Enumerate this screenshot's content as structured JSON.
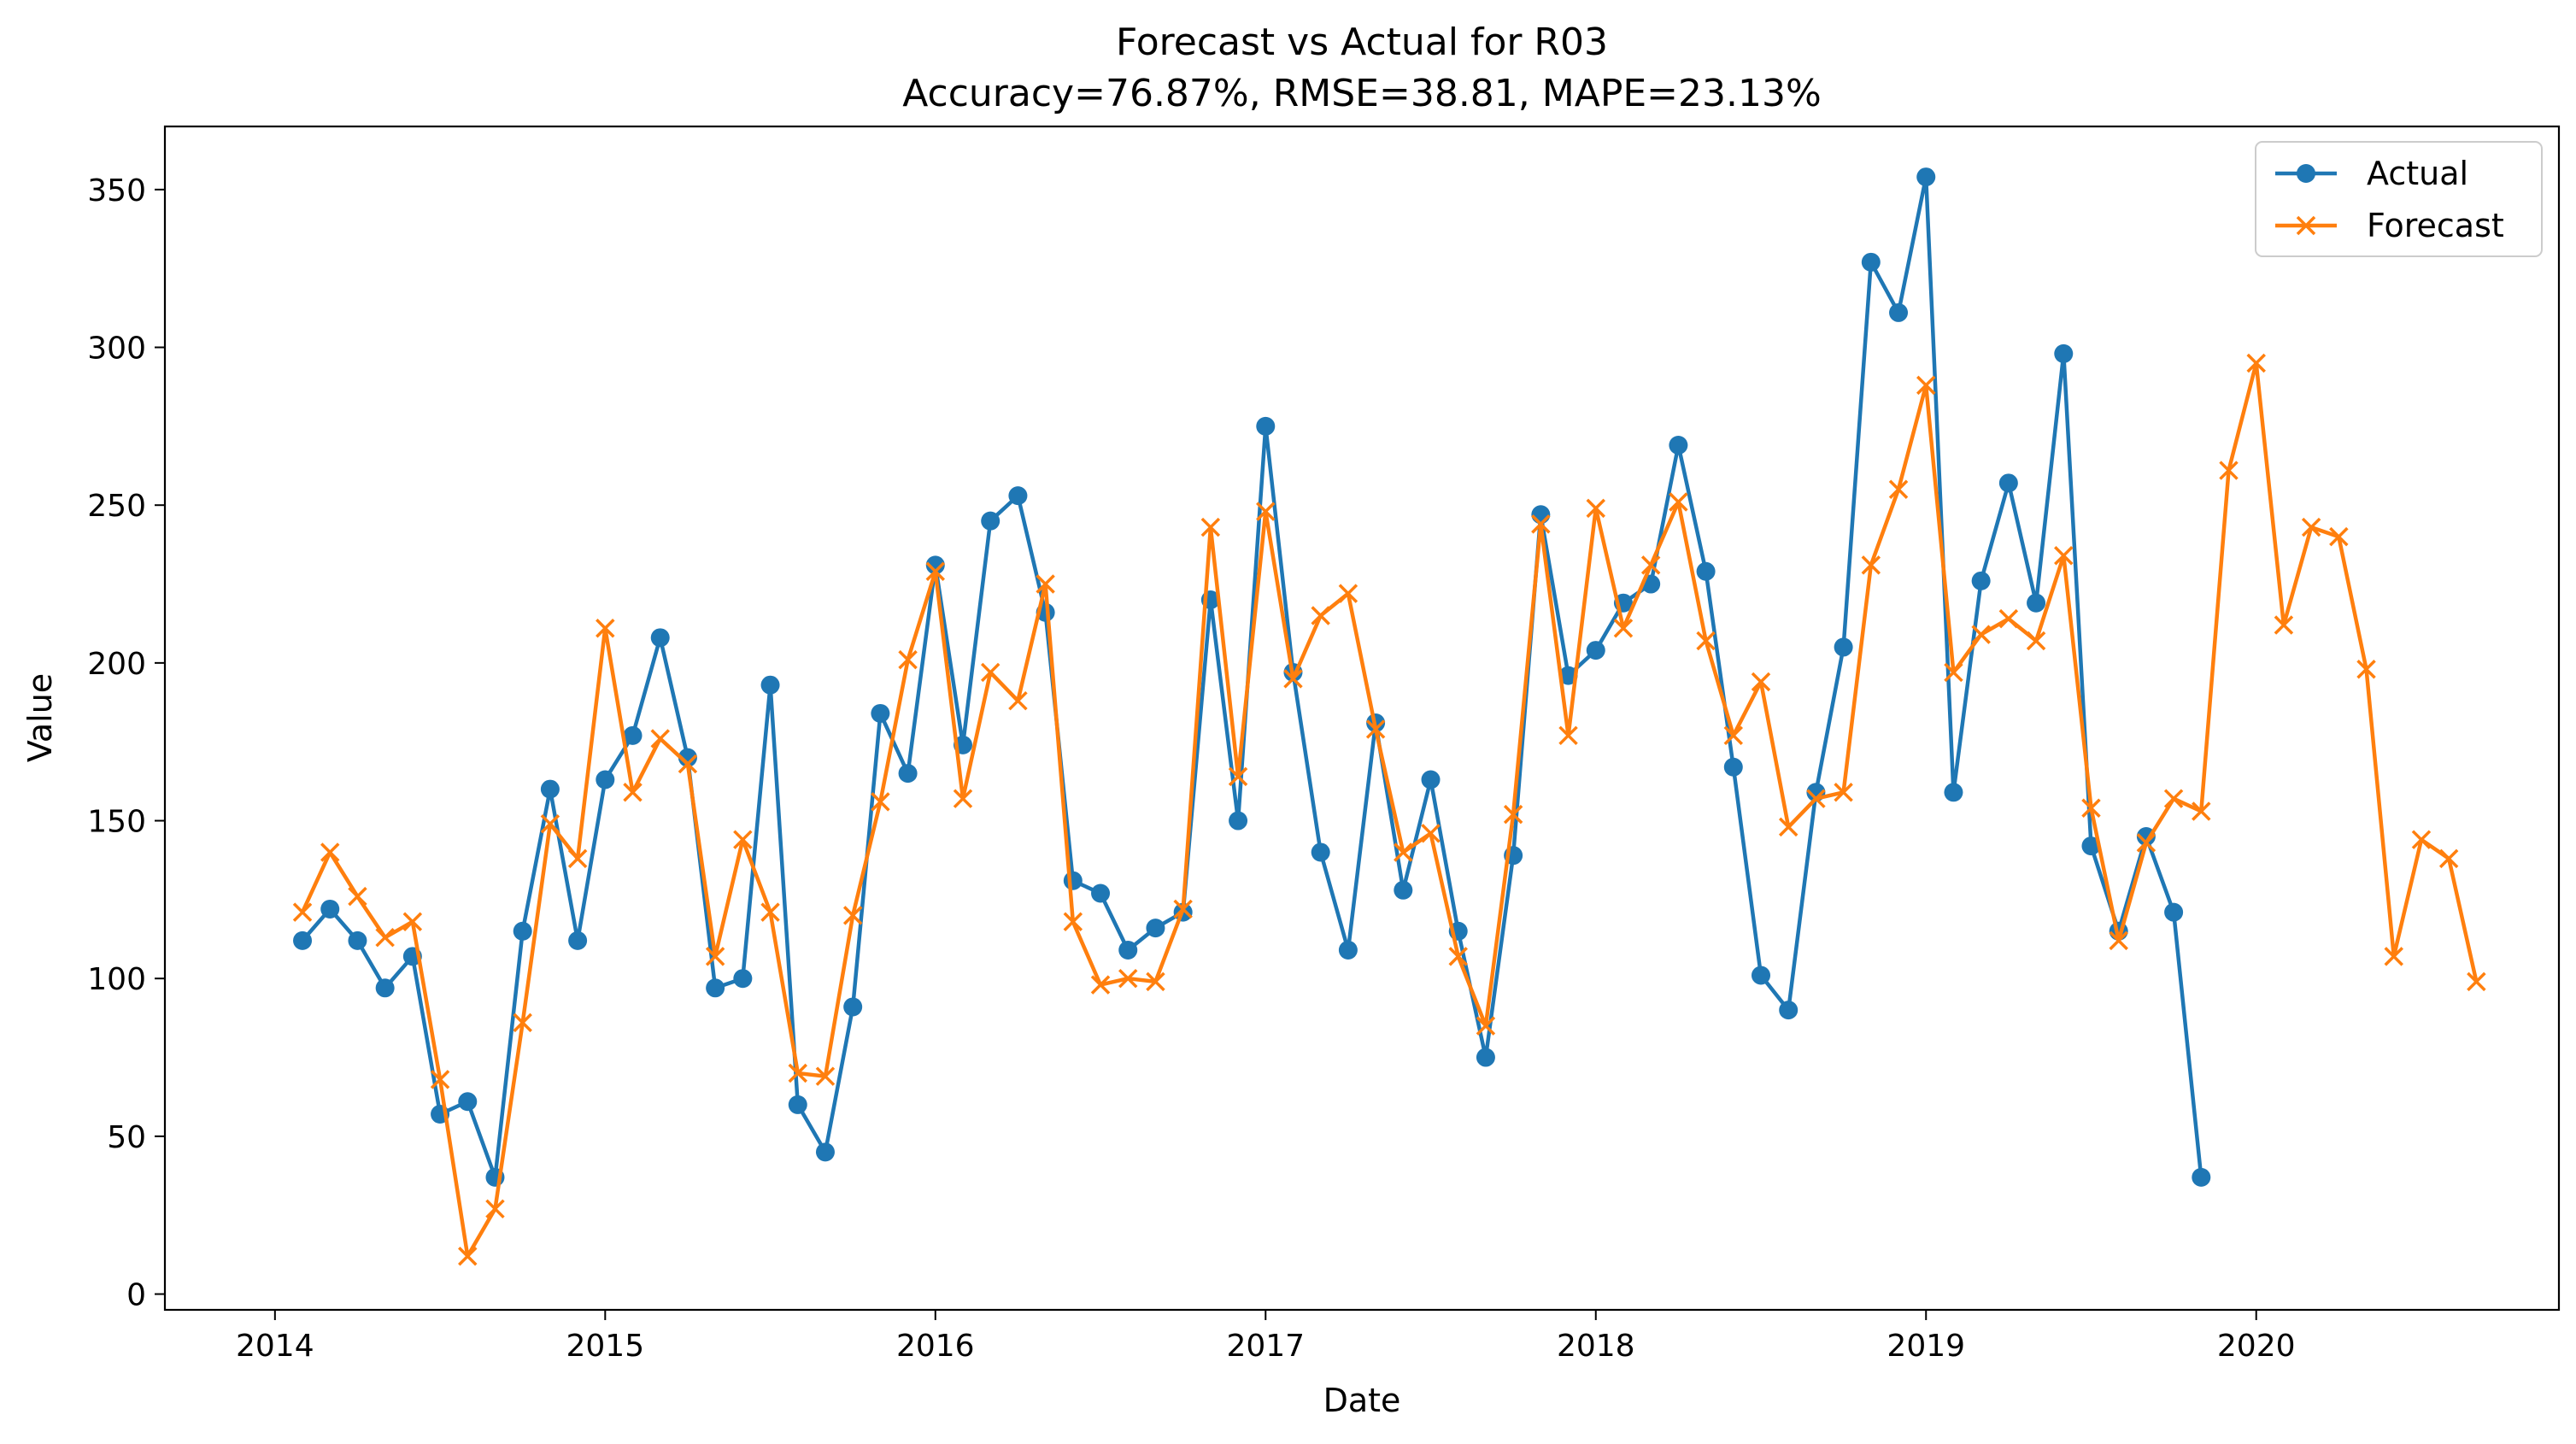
{
  "chart_data": {
    "type": "line",
    "title": "Forecast vs Actual for R03",
    "subtitle": "Accuracy=76.87%, RMSE=38.81, MAPE=23.13%",
    "xlabel": "Date",
    "ylabel": "Value",
    "x_ticks": [
      "2014",
      "2015",
      "2016",
      "2017",
      "2018",
      "2019",
      "2020"
    ],
    "y_ticks": [
      0,
      50,
      100,
      150,
      200,
      250,
      300,
      350
    ],
    "ylim": [
      -5,
      370
    ],
    "xlim": [
      "2013-09",
      "2020-12"
    ],
    "grid": false,
    "legend_position": "top-right",
    "series": [
      {
        "name": "Actual",
        "color": "#1f77b4",
        "marker": "circle",
        "x": [
          "2014-02",
          "2014-03",
          "2014-04",
          "2014-05",
          "2014-06",
          "2014-07",
          "2014-08",
          "2014-09",
          "2014-10",
          "2014-11",
          "2014-12",
          "2015-01",
          "2015-02",
          "2015-03",
          "2015-04",
          "2015-05",
          "2015-06",
          "2015-07",
          "2015-08",
          "2015-09",
          "2015-10",
          "2015-11",
          "2015-12",
          "2016-01",
          "2016-02",
          "2016-03",
          "2016-04",
          "2016-05",
          "2016-06",
          "2016-07",
          "2016-08",
          "2016-09",
          "2016-10",
          "2016-11",
          "2016-12",
          "2017-01",
          "2017-02",
          "2017-03",
          "2017-04",
          "2017-05",
          "2017-06",
          "2017-07",
          "2017-08",
          "2017-09",
          "2017-10",
          "2017-11",
          "2017-12",
          "2018-01",
          "2018-02",
          "2018-03",
          "2018-04",
          "2018-05",
          "2018-06",
          "2018-07",
          "2018-08",
          "2018-09",
          "2018-10",
          "2018-11",
          "2018-12",
          "2019-01",
          "2019-02",
          "2019-03",
          "2019-04",
          "2019-05",
          "2019-06",
          "2019-07",
          "2019-08",
          "2019-09",
          "2019-10",
          "2019-11"
        ],
        "values": [
          112,
          122,
          112,
          97,
          107,
          57,
          61,
          37,
          115,
          160,
          112,
          163,
          177,
          208,
          170,
          97,
          100,
          193,
          60,
          45,
          91,
          184,
          165,
          231,
          174,
          245,
          253,
          216,
          131,
          127,
          109,
          116,
          121,
          220,
          150,
          275,
          197,
          140,
          109,
          181,
          128,
          163,
          115,
          75,
          139,
          247,
          196,
          204,
          219,
          225,
          269,
          229,
          167,
          101,
          90,
          159,
          205,
          327,
          311,
          354,
          159,
          226,
          257,
          219,
          298,
          142,
          115,
          145,
          121,
          37
        ]
      },
      {
        "name": "Forecast",
        "color": "#ff7f0e",
        "marker": "x",
        "x": [
          "2014-02",
          "2014-03",
          "2014-04",
          "2014-05",
          "2014-06",
          "2014-07",
          "2014-08",
          "2014-09",
          "2014-10",
          "2014-11",
          "2014-12",
          "2015-01",
          "2015-02",
          "2015-03",
          "2015-04",
          "2015-05",
          "2015-06",
          "2015-07",
          "2015-08",
          "2015-09",
          "2015-10",
          "2015-11",
          "2015-12",
          "2016-01",
          "2016-02",
          "2016-03",
          "2016-04",
          "2016-05",
          "2016-06",
          "2016-07",
          "2016-08",
          "2016-09",
          "2016-10",
          "2016-11",
          "2016-12",
          "2017-01",
          "2017-02",
          "2017-03",
          "2017-04",
          "2017-05",
          "2017-06",
          "2017-07",
          "2017-08",
          "2017-09",
          "2017-10",
          "2017-11",
          "2017-12",
          "2018-01",
          "2018-02",
          "2018-03",
          "2018-04",
          "2018-05",
          "2018-06",
          "2018-07",
          "2018-08",
          "2018-09",
          "2018-10",
          "2018-11",
          "2018-12",
          "2019-01",
          "2019-02",
          "2019-03",
          "2019-04",
          "2019-05",
          "2019-06",
          "2019-07",
          "2019-08",
          "2019-09",
          "2019-10",
          "2019-11",
          "2019-12",
          "2020-01",
          "2020-02",
          "2020-03",
          "2020-04",
          "2020-05",
          "2020-06",
          "2020-07",
          "2020-08",
          "2020-09"
        ],
        "values": [
          121,
          140,
          126,
          113,
          118,
          68,
          12,
          27,
          86,
          149,
          138,
          211,
          159,
          176,
          168,
          107,
          144,
          121,
          70,
          69,
          120,
          156,
          201,
          229,
          157,
          197,
          188,
          225,
          118,
          98,
          100,
          99,
          122,
          243,
          164,
          248,
          195,
          215,
          222,
          179,
          140,
          146,
          107,
          85,
          152,
          244,
          177,
          249,
          211,
          231,
          251,
          207,
          177,
          194,
          148,
          157,
          159,
          231,
          255,
          288,
          197,
          209,
          214,
          207,
          234,
          154,
          112,
          143,
          157,
          153,
          261,
          295,
          212,
          243,
          240,
          198,
          107,
          144,
          138,
          99
        ]
      }
    ]
  }
}
